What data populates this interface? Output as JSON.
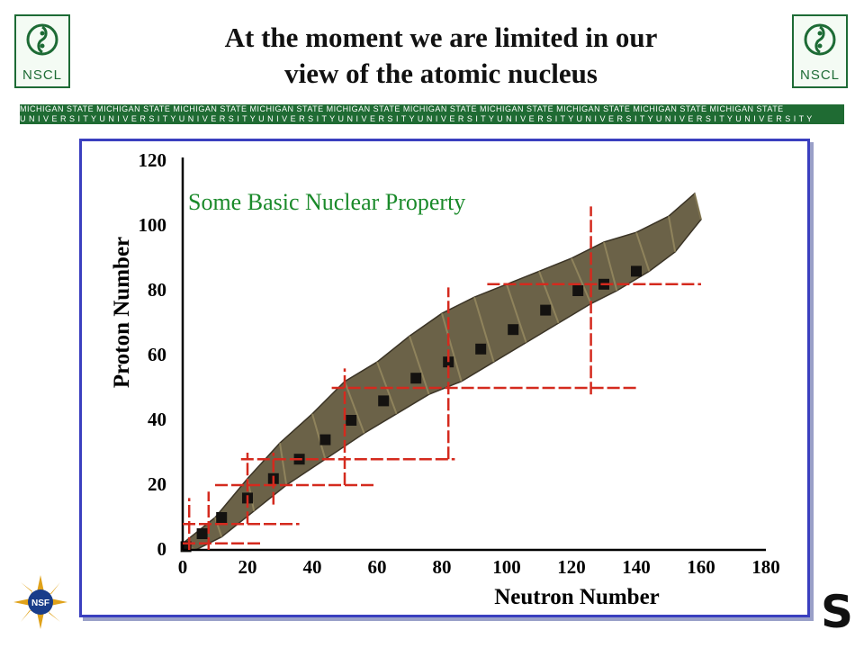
{
  "title_line1": "At the moment we are limited in our",
  "title_line2": "view of the atomic nucleus",
  "logo_text": "NSCL",
  "banner": {
    "top": "MICHIGAN STATE MICHIGAN STATE MICHIGAN STATE MICHIGAN STATE MICHIGAN STATE MICHIGAN STATE MICHIGAN STATE MICHIGAN STATE MICHIGAN STATE MICHIGAN STATE",
    "bottom": "U N I V E R S I T Y U N I V E R S I T Y U N I V E R S I T Y U N I V E R S I T Y U N I V E R S I T Y U N I V E R S I T Y U N I V E R S I T Y U N I V E R S I T Y U N I V E R S I T Y U N I V E R S I T Y"
  },
  "nsf_text": "NSF",
  "s_logo": "S",
  "colors": {
    "frame": "#3a3fbf",
    "magic_lines": "#d42a1e",
    "annotation": "#1a8a2a",
    "banner": "#1f6b33"
  },
  "chart_data": {
    "type": "scatter",
    "xlabel": "Neutron Number",
    "ylabel": "Proton Number",
    "xlim": [
      0,
      180
    ],
    "ylim": [
      0,
      120
    ],
    "xticks": [
      0,
      20,
      40,
      60,
      80,
      100,
      120,
      140,
      160,
      180
    ],
    "yticks": [
      0,
      20,
      40,
      60,
      80,
      100,
      120
    ],
    "annotation": "Some Basic Nuclear Property",
    "band": {
      "upper": [
        [
          0,
          2
        ],
        [
          10,
          10
        ],
        [
          20,
          22
        ],
        [
          30,
          33
        ],
        [
          40,
          42
        ],
        [
          50,
          52
        ],
        [
          60,
          58
        ],
        [
          70,
          66
        ],
        [
          80,
          73
        ],
        [
          90,
          78
        ],
        [
          100,
          82
        ],
        [
          110,
          86
        ],
        [
          120,
          90
        ],
        [
          130,
          95
        ],
        [
          140,
          98
        ],
        [
          150,
          103
        ],
        [
          158,
          110
        ]
      ],
      "lower": [
        [
          4,
          0
        ],
        [
          12,
          4
        ],
        [
          22,
          12
        ],
        [
          32,
          20
        ],
        [
          44,
          28
        ],
        [
          56,
          36
        ],
        [
          66,
          42
        ],
        [
          76,
          48
        ],
        [
          86,
          52
        ],
        [
          96,
          58
        ],
        [
          106,
          64
        ],
        [
          116,
          70
        ],
        [
          126,
          76
        ],
        [
          134,
          80
        ],
        [
          144,
          86
        ],
        [
          152,
          92
        ],
        [
          160,
          102
        ]
      ]
    },
    "stable_line": [
      [
        1,
        1
      ],
      [
        6,
        5
      ],
      [
        12,
        10
      ],
      [
        20,
        16
      ],
      [
        28,
        22
      ],
      [
        36,
        28
      ],
      [
        44,
        34
      ],
      [
        52,
        40
      ],
      [
        62,
        46
      ],
      [
        72,
        53
      ],
      [
        82,
        58
      ],
      [
        92,
        62
      ],
      [
        102,
        68
      ],
      [
        112,
        74
      ],
      [
        122,
        80
      ],
      [
        130,
        82
      ],
      [
        140,
        86
      ]
    ],
    "magic_numbers": [
      2,
      8,
      20,
      28,
      50,
      82,
      126
    ],
    "magic_lines_vertical": [
      {
        "x": 2,
        "y_range": [
          0,
          16
        ]
      },
      {
        "x": 8,
        "y_range": [
          0,
          18
        ]
      },
      {
        "x": 20,
        "y_range": [
          8,
          30
        ]
      },
      {
        "x": 28,
        "y_range": [
          14,
          30
        ]
      },
      {
        "x": 50,
        "y_range": [
          20,
          56
        ]
      },
      {
        "x": 82,
        "y_range": [
          28,
          81
        ]
      },
      {
        "x": 126,
        "y_range": [
          48,
          106
        ]
      }
    ],
    "magic_lines_horizontal": [
      {
        "y": 2,
        "x_range": [
          0,
          24
        ]
      },
      {
        "y": 8,
        "x_range": [
          0,
          36
        ]
      },
      {
        "y": 20,
        "x_range": [
          10,
          60
        ]
      },
      {
        "y": 28,
        "x_range": [
          18,
          84
        ]
      },
      {
        "y": 50,
        "x_range": [
          46,
          140
        ]
      },
      {
        "y": 82,
        "x_range": [
          94,
          160
        ]
      }
    ]
  }
}
